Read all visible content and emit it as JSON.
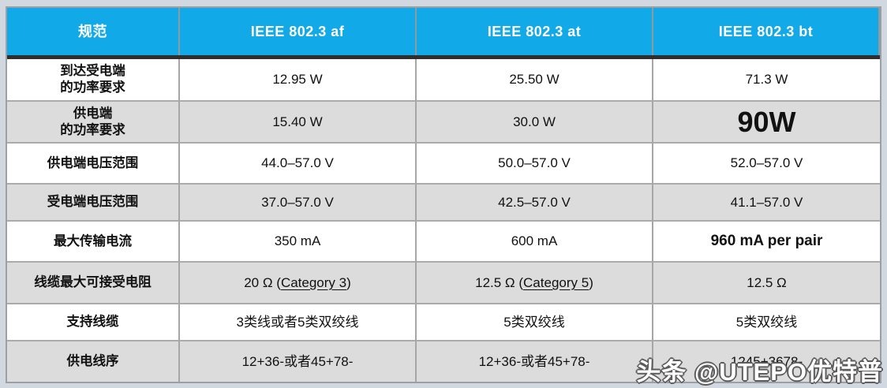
{
  "colors": {
    "page_background": "#d2d8e0",
    "header_background": "#12a9e8",
    "header_text": "#ffffff",
    "stripe_gray": "#dcdcdc",
    "cell_border": "#a6a6a6",
    "header_divider": "#2e2e2e",
    "watermark_fill": "#ffffff",
    "watermark_outline": "#5c5c5c"
  },
  "table": {
    "header": {
      "spec": "规范",
      "af": "IEEE 802.3 af",
      "at": "IEEE 802.3 at",
      "bt": "IEEE 802.3 bt"
    },
    "rows": [
      {
        "label": "到达受电端\n的功率要求",
        "af": "12.95 W",
        "at": "25.50 W",
        "bt": "71.3 W"
      },
      {
        "label": "供电端\n的功率要求",
        "af": "15.40 W",
        "at": "30.0 W",
        "bt": "90W"
      },
      {
        "label": "供电端电压范围",
        "af": "44.0–57.0 V",
        "at": "50.0–57.0 V",
        "bt": "52.0–57.0 V"
      },
      {
        "label": "受电端电压范围",
        "af": "37.0–57.0 V",
        "at": "42.5–57.0 V",
        "bt": "41.1–57.0 V"
      },
      {
        "label": "最大传输电流",
        "af": "350 mA",
        "at": "600 mA",
        "bt": "960 mA per pair"
      },
      {
        "label": "线缆最大可接受电阻",
        "af_pre": "20 Ω (",
        "af_u": "Category 3",
        "af_post": ")",
        "at_pre": "12.5 Ω (",
        "at_u": "Category 5",
        "at_post": ")",
        "bt": "12.5 Ω"
      },
      {
        "label": "支持线缆",
        "af": "3类线或者5类双绞线",
        "at": "5类双绞线",
        "bt": "5类双绞线"
      },
      {
        "label": "供电线序",
        "af": "12+36-或者45+78-",
        "at": "12+36-或者45+78-",
        "bt": "1245+3678-"
      }
    ]
  },
  "watermark": {
    "text": "头条 @UTEPO优特普"
  }
}
